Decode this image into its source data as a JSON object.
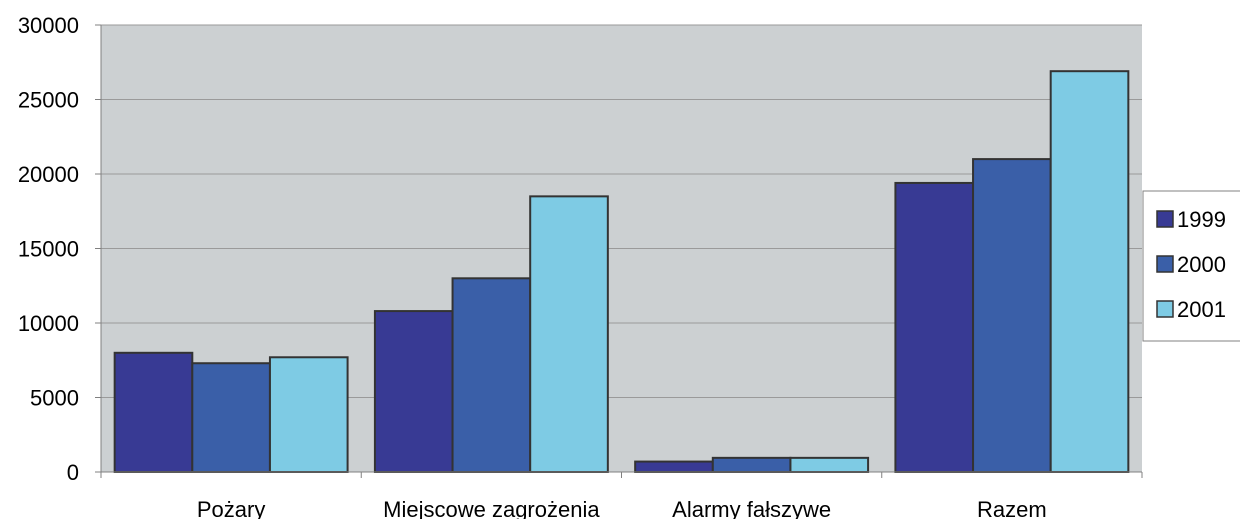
{
  "chart_data": {
    "type": "bar",
    "categories": [
      "Pożary",
      "Miejscowe zagrożenia",
      "Alarmy fałszywe",
      "Razem"
    ],
    "series": [
      {
        "name": "1999",
        "values": [
          8000,
          10800,
          700,
          19400
        ]
      },
      {
        "name": "2000",
        "values": [
          7300,
          13000,
          950,
          21000
        ]
      },
      {
        "name": "2001",
        "values": [
          7700,
          18500,
          950,
          26900
        ]
      }
    ],
    "colors": [
      "#383a94",
      "#3a5fa8",
      "#7ecbe4"
    ],
    "plot_background": "#ccd0d2",
    "gridline_color": "#9a9a9a",
    "bar_outline_color": "#333333",
    "ylim": [
      0,
      30000
    ],
    "yticks": [
      0,
      5000,
      10000,
      15000,
      20000,
      25000,
      30000
    ],
    "grid": true,
    "legend_position": "right"
  }
}
